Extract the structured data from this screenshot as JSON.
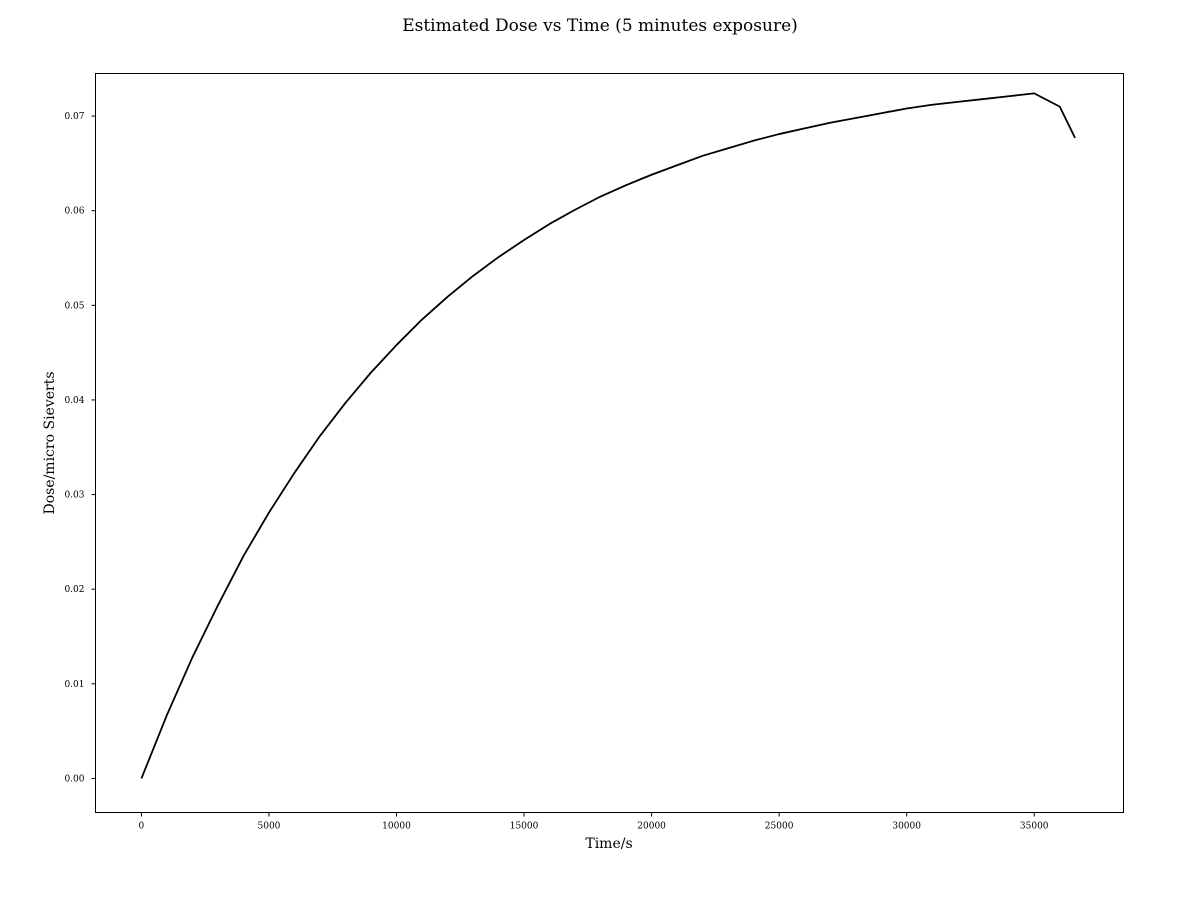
{
  "chart_data": {
    "type": "line",
    "title": "Estimated Dose vs Time (5 minutes exposure)",
    "xlabel": "Time/s",
    "ylabel": "Dose/micro Sieverts",
    "xlim": [
      -1800,
      38500
    ],
    "ylim": [
      -0.0036,
      0.0745
    ],
    "x_ticks": [
      0,
      5000,
      10000,
      15000,
      20000,
      25000,
      30000,
      35000
    ],
    "x_tick_labels": [
      "0",
      "5000",
      "10000",
      "15000",
      "20000",
      "25000",
      "30000",
      "35000"
    ],
    "y_ticks": [
      0.0,
      0.01,
      0.02,
      0.03,
      0.04,
      0.05,
      0.06,
      0.07
    ],
    "y_tick_labels": [
      "0.00",
      "0.01",
      "0.02",
      "0.03",
      "0.04",
      "0.05",
      "0.06",
      "0.07"
    ],
    "grid": false,
    "legend": "none",
    "series": [
      {
        "color": "#000000",
        "x": [
          0,
          1000,
          2000,
          3000,
          4000,
          5000,
          6000,
          7000,
          8000,
          9000,
          10000,
          11000,
          12000,
          13000,
          14000,
          15000,
          16000,
          17000,
          18000,
          19000,
          20000,
          21000,
          22000,
          23000,
          24000,
          25000,
          26000,
          27000,
          28000,
          29000,
          30000,
          31000,
          32000,
          33000,
          34000,
          35000,
          36000,
          36600
        ],
        "y": [
          0.0,
          0.0067,
          0.0128,
          0.0183,
          0.0235,
          0.0281,
          0.0323,
          0.0362,
          0.0397,
          0.0429,
          0.0458,
          0.0485,
          0.0509,
          0.0531,
          0.0551,
          0.0569,
          0.0586,
          0.0601,
          0.0615,
          0.0627,
          0.0638,
          0.0648,
          0.0658,
          0.0666,
          0.0674,
          0.0681,
          0.0687,
          0.0693,
          0.0698,
          0.0703,
          0.0708,
          0.0712,
          0.0715,
          0.0718,
          0.0721,
          0.0724,
          0.071,
          0.0677
        ]
      }
    ]
  }
}
